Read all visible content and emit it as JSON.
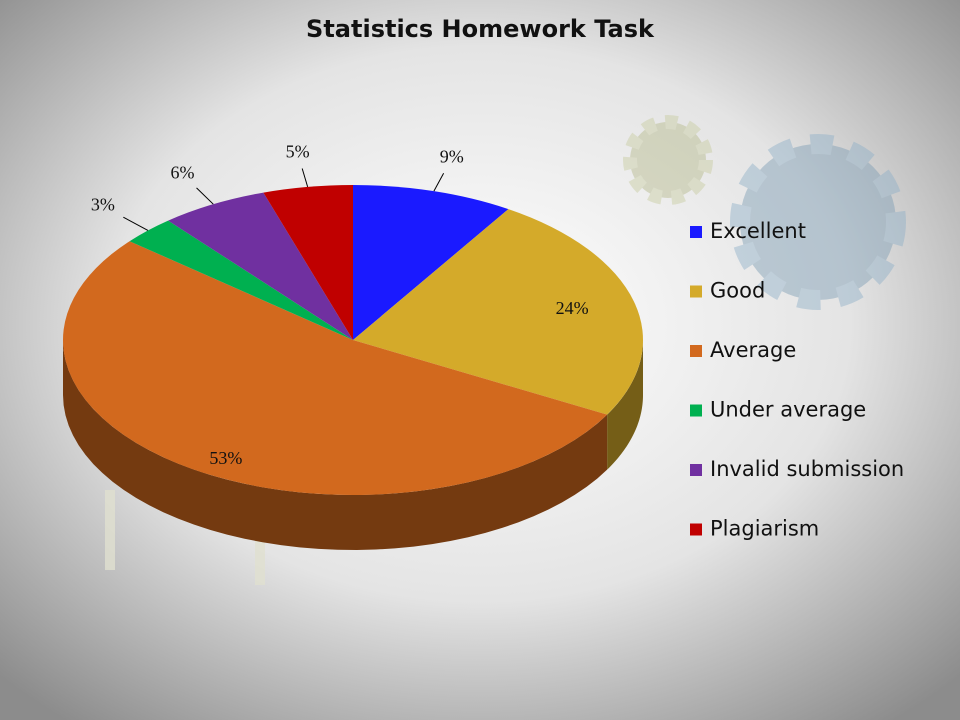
{
  "chart_data": {
    "type": "pie",
    "title": "Statistics Homework Task",
    "categories": [
      "Excellent",
      "Good",
      "Average",
      "Under average",
      "Invalid submission",
      "Plagiarism"
    ],
    "values": [
      9,
      24,
      53,
      3,
      6,
      5
    ],
    "value_labels": [
      "9%",
      "24%",
      "53%",
      "3%",
      "6%",
      "5%"
    ],
    "colors": [
      "#1a1aff",
      "#d4aa2a",
      "#d2691e",
      "#00b050",
      "#7030a0",
      "#c00000"
    ],
    "legend": "right"
  }
}
